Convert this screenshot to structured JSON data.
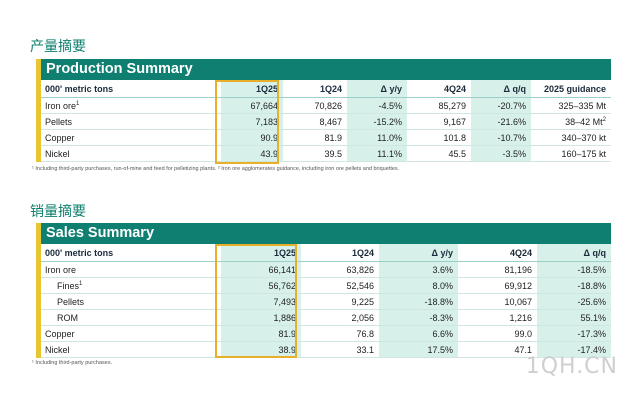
{
  "production": {
    "cn_title": "产量摘要",
    "title": "Production Summary",
    "headers": [
      "000' metric tons",
      "1Q25",
      "1Q24",
      "Δ y/y",
      "4Q24",
      "Δ q/q",
      "2025 guidance"
    ],
    "rows": [
      {
        "label": "Iron ore",
        "sup": "1",
        "values": [
          "67,664",
          "70,826",
          "-4.5%",
          "85,279",
          "-20.7%",
          "325–335 Mt"
        ],
        "sup_last": ""
      },
      {
        "label": "Pellets",
        "sup": "",
        "values": [
          "7,183",
          "8,467",
          "-15.2%",
          "9,167",
          "-21.6%",
          "38–42 Mt"
        ],
        "sup_last": "2"
      },
      {
        "label": "Copper",
        "sup": "",
        "values": [
          "90.9",
          "81.9",
          "11.0%",
          "101.8",
          "-10.7%",
          "340–370 kt"
        ],
        "sup_last": ""
      },
      {
        "label": "Nickel",
        "sup": "",
        "values": [
          "43.9",
          "39.5",
          "11.1%",
          "45.5",
          "-3.5%",
          "160–175 kt"
        ],
        "sup_last": ""
      }
    ],
    "footnote": "¹ Including third-party purchases, run-of-mine and feed for pelletizing plants. ² Iron ore agglomerates guidance, including iron ore pellets and briquettes."
  },
  "sales": {
    "cn_title": "销量摘要",
    "title": "Sales Summary",
    "headers": [
      "000' metric tons",
      "1Q25",
      "1Q24",
      "Δ y/y",
      "4Q24",
      "Δ q/q"
    ],
    "rows": [
      {
        "label": "Iron ore",
        "sup": "",
        "indent": false,
        "values": [
          "66,141",
          "63,826",
          "3.6%",
          "81,196",
          "-18.5%"
        ]
      },
      {
        "label": "Fines",
        "sup": "1",
        "indent": true,
        "values": [
          "56,762",
          "52,546",
          "8.0%",
          "69,912",
          "-18.8%"
        ]
      },
      {
        "label": "Pellets",
        "sup": "",
        "indent": true,
        "values": [
          "7,493",
          "9,225",
          "-18.8%",
          "10,067",
          "-25.6%"
        ]
      },
      {
        "label": "ROM",
        "sup": "",
        "indent": true,
        "values": [
          "1,886",
          "2,056",
          "-8.3%",
          "1,216",
          "55.1%"
        ]
      },
      {
        "label": "Copper",
        "sup": "",
        "indent": false,
        "values": [
          "81.9",
          "76.8",
          "6.6%",
          "99.0",
          "-17.3%"
        ]
      },
      {
        "label": "Nickel",
        "sup": "",
        "indent": false,
        "values": [
          "38.9",
          "33.1",
          "17.5%",
          "47.1",
          "-17.4%"
        ]
      }
    ],
    "footnote": "¹ Including third-party purchases."
  },
  "watermark": "1QH.CN",
  "colors": {
    "banner": "#0f7f71",
    "accent": "#e8c632",
    "highlight": "#d8f0ea",
    "frame": "#e8b02a",
    "cn_title": "#0d7f6d"
  }
}
